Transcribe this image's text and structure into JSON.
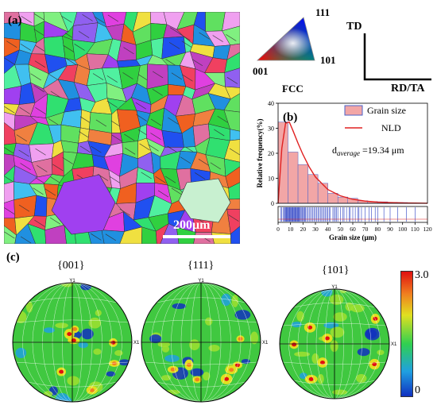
{
  "panel_a": {
    "label": "(a)",
    "scale_bar_label": "200μm"
  },
  "ipf_key": {
    "corners": {
      "top": "111",
      "bottom_left": "001",
      "bottom_right": "101"
    },
    "crystal": "FCC"
  },
  "directions": {
    "vertical": "TD",
    "horizontal": "RD/TA"
  },
  "chart_data": {
    "type": "bar",
    "label": "(b)",
    "xlabel": "Grain size (μm)",
    "ylabel": "Relative frequency(%)",
    "xlim": [
      0,
      120
    ],
    "ylim": [
      0,
      40
    ],
    "xticks": [
      "0",
      "10",
      "20",
      "30",
      "40",
      "50",
      "60",
      "70",
      "80",
      "90",
      "100",
      "110",
      "120"
    ],
    "yticks": [
      "0",
      "10",
      "20",
      "30",
      "40"
    ],
    "bin_width": 8,
    "bins": [
      0,
      8,
      16,
      24,
      32,
      40,
      48,
      56,
      64,
      72,
      80,
      88,
      96
    ],
    "values": [
      32.5,
      20.5,
      15.5,
      11.5,
      8,
      4,
      2.5,
      2,
      1,
      0.7,
      0.6,
      0.4,
      0.3
    ],
    "fit_curve": {
      "name": "NLD",
      "x": [
        0,
        3,
        6,
        9,
        12,
        16,
        20,
        25,
        30,
        40,
        50,
        60,
        70,
        80,
        90,
        100,
        110,
        120
      ],
      "y": [
        0,
        22,
        32,
        32.5,
        29,
        24,
        19.5,
        14.5,
        10.5,
        5.5,
        3,
        1.6,
        0.9,
        0.5,
        0.3,
        0.15,
        0.08,
        0.04
      ]
    },
    "legend": [
      "Grain size",
      "NLD"
    ],
    "legend_position": "top-right",
    "annotation": "=19.34 μm",
    "annotation_prefix": "d",
    "annotation_subscript": "average",
    "rug_values": [
      2,
      3,
      4,
      5,
      5.5,
      6,
      6.5,
      7,
      7.5,
      8,
      8.5,
      9,
      9.5,
      10,
      10.5,
      11,
      11.5,
      12,
      12.5,
      13,
      13.5,
      14,
      14.5,
      15,
      15.5,
      16,
      16.5,
      17,
      17.5,
      18,
      19,
      19.5,
      20,
      21,
      21.5,
      22,
      23,
      24,
      25,
      26,
      27,
      28,
      29,
      30,
      31,
      32,
      33,
      34,
      35,
      36,
      37,
      38,
      39,
      40,
      41,
      42,
      44,
      45,
      46,
      47,
      48,
      50,
      52,
      53,
      55,
      57,
      58,
      60,
      62,
      64,
      65,
      67,
      70,
      73,
      75,
      78,
      80,
      85,
      90,
      96,
      103,
      110
    ],
    "series_colors": {
      "bars_fill": "#f2a6a6",
      "bars_edge": "#4a63c9",
      "curve": "#e02020",
      "rug": "#2a3fc4"
    }
  },
  "panel_c": {
    "label": "(c)",
    "pole_figures": [
      {
        "title": "{001}",
        "axis_top": "Y1",
        "axis_right": "X1"
      },
      {
        "title": "{111}",
        "axis_top": "Y1",
        "axis_right": "X1"
      },
      {
        "title": "{101}",
        "axis_top": "Y1",
        "axis_right": "X1"
      }
    ],
    "colorbar": {
      "max_label": "3.0",
      "min_label": "0",
      "colors": [
        "#1030c0",
        "#20a0e0",
        "#30d050",
        "#e0e020",
        "#f08020",
        "#e01010"
      ]
    }
  }
}
